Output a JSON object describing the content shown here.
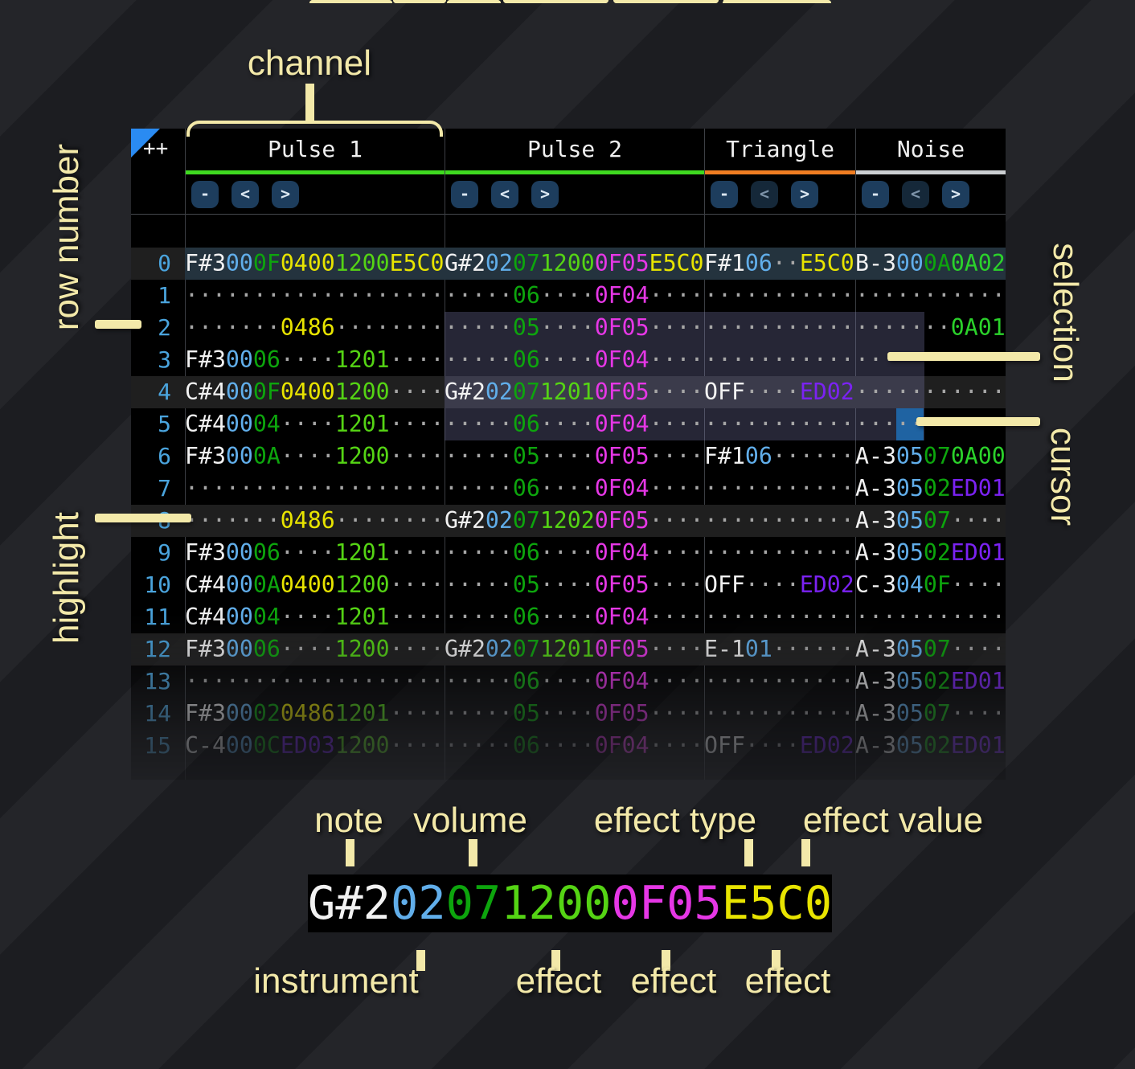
{
  "corner": "++",
  "channels": [
    {
      "name": "Pulse 1",
      "underline": "#3fd920",
      "buttons": [
        {
          "label": "-",
          "dim": false
        },
        {
          "label": "<",
          "dim": false
        },
        {
          "label": ">",
          "dim": false
        }
      ]
    },
    {
      "name": "Pulse 2",
      "underline": "#3fd920",
      "buttons": [
        {
          "label": "-",
          "dim": false
        },
        {
          "label": "<",
          "dim": false
        },
        {
          "label": ">",
          "dim": false
        }
      ]
    },
    {
      "name": "Triangle",
      "underline": "#ef7d22",
      "buttons": [
        {
          "label": "-",
          "dim": false
        },
        {
          "label": "<",
          "dim": true
        },
        {
          "label": ">",
          "dim": false
        }
      ]
    },
    {
      "name": "Noise",
      "underline": "#cbced1",
      "buttons": [
        {
          "label": "-",
          "dim": false
        },
        {
          "label": "<",
          "dim": true
        },
        {
          "label": ">",
          "dim": false
        }
      ]
    }
  ],
  "rows": [
    {
      "n": "0",
      "beat": true,
      "play": true,
      "cells": [
        [
          [
            "F#3",
            "n"
          ],
          [
            "00",
            "i"
          ],
          [
            "0F",
            "v"
          ],
          [
            "0400",
            "y"
          ],
          [
            "1200",
            "l"
          ],
          [
            "E5C0",
            "y"
          ]
        ],
        [
          [
            "G#2",
            "n"
          ],
          [
            "02",
            "i"
          ],
          [
            "07",
            "v"
          ],
          [
            "1200",
            "l"
          ],
          [
            "0F05",
            "m"
          ],
          [
            "E5C0",
            "y"
          ]
        ],
        [
          [
            "F#1",
            "n"
          ],
          [
            "06",
            "i"
          ],
          [
            "··",
            "d"
          ],
          [
            "E5C0",
            "y"
          ]
        ],
        [
          [
            "B-3",
            "n"
          ],
          [
            "00",
            "i"
          ],
          [
            "0A",
            "v"
          ],
          [
            "0A02",
            "g"
          ]
        ]
      ]
    },
    {
      "n": "1",
      "beat": false,
      "play": false,
      "cells": [
        [
          [
            "···················",
            "d"
          ]
        ],
        [
          [
            "·····",
            "d"
          ],
          [
            "06",
            "v"
          ],
          [
            "····",
            "d"
          ],
          [
            "0F04",
            "m"
          ],
          [
            "····",
            "d"
          ]
        ],
        [
          [
            "···········",
            "d"
          ]
        ],
        [
          [
            "···········",
            "d"
          ]
        ]
      ]
    },
    {
      "n": "2",
      "beat": false,
      "play": false,
      "cells": [
        [
          [
            "·······",
            "d"
          ],
          [
            "0486",
            "y"
          ],
          [
            "········",
            "d"
          ]
        ],
        [
          [
            "·····",
            "d"
          ],
          [
            "05",
            "v"
          ],
          [
            "····",
            "d"
          ],
          [
            "0F05",
            "m"
          ],
          [
            "····",
            "d"
          ]
        ],
        [
          [
            "···········",
            "d"
          ]
        ],
        [
          [
            "·······",
            "d"
          ],
          [
            "0A01",
            "g"
          ]
        ]
      ]
    },
    {
      "n": "3",
      "beat": false,
      "play": false,
      "cells": [
        [
          [
            "F#3",
            "n"
          ],
          [
            "00",
            "i"
          ],
          [
            "06",
            "v"
          ],
          [
            "····",
            "d"
          ],
          [
            "1201",
            "l"
          ],
          [
            "····",
            "d"
          ]
        ],
        [
          [
            "·····",
            "d"
          ],
          [
            "06",
            "v"
          ],
          [
            "····",
            "d"
          ],
          [
            "0F04",
            "m"
          ],
          [
            "····",
            "d"
          ]
        ],
        [
          [
            "···········",
            "d"
          ]
        ],
        [
          [
            "···········",
            "d"
          ]
        ]
      ]
    },
    {
      "n": "4",
      "beat": true,
      "play": false,
      "cells": [
        [
          [
            "C#4",
            "n"
          ],
          [
            "00",
            "i"
          ],
          [
            "0F",
            "v"
          ],
          [
            "0400",
            "y"
          ],
          [
            "1200",
            "l"
          ],
          [
            "····",
            "d"
          ]
        ],
        [
          [
            "G#2",
            "n"
          ],
          [
            "02",
            "i"
          ],
          [
            "07",
            "v"
          ],
          [
            "1201",
            "l"
          ],
          [
            "0F05",
            "m"
          ],
          [
            "····",
            "d"
          ]
        ],
        [
          [
            "OFF",
            "n"
          ],
          [
            "····",
            "d"
          ],
          [
            "ED02",
            "p"
          ]
        ],
        [
          [
            "···········",
            "d"
          ]
        ]
      ]
    },
    {
      "n": "5",
      "beat": false,
      "play": false,
      "cells": [
        [
          [
            "C#4",
            "n"
          ],
          [
            "00",
            "i"
          ],
          [
            "04",
            "v"
          ],
          [
            "····",
            "d"
          ],
          [
            "1201",
            "l"
          ],
          [
            "····",
            "d"
          ]
        ],
        [
          [
            "·····",
            "d"
          ],
          [
            "06",
            "v"
          ],
          [
            "····",
            "d"
          ],
          [
            "0F04",
            "m"
          ],
          [
            "····",
            "d"
          ]
        ],
        [
          [
            "···········",
            "d"
          ]
        ],
        [
          [
            "···········",
            "d"
          ]
        ]
      ]
    },
    {
      "n": "6",
      "beat": false,
      "play": false,
      "cells": [
        [
          [
            "F#3",
            "n"
          ],
          [
            "00",
            "i"
          ],
          [
            "0A",
            "v"
          ],
          [
            "····",
            "d"
          ],
          [
            "1200",
            "l"
          ],
          [
            "····",
            "d"
          ]
        ],
        [
          [
            "·····",
            "d"
          ],
          [
            "05",
            "v"
          ],
          [
            "····",
            "d"
          ],
          [
            "0F05",
            "m"
          ],
          [
            "····",
            "d"
          ]
        ],
        [
          [
            "F#1",
            "n"
          ],
          [
            "06",
            "i"
          ],
          [
            "······",
            "d"
          ]
        ],
        [
          [
            "A-3",
            "n"
          ],
          [
            "05",
            "i"
          ],
          [
            "07",
            "v"
          ],
          [
            "0A00",
            "g"
          ]
        ]
      ]
    },
    {
      "n": "7",
      "beat": false,
      "play": false,
      "cells": [
        [
          [
            "···················",
            "d"
          ]
        ],
        [
          [
            "·····",
            "d"
          ],
          [
            "06",
            "v"
          ],
          [
            "····",
            "d"
          ],
          [
            "0F04",
            "m"
          ],
          [
            "····",
            "d"
          ]
        ],
        [
          [
            "···········",
            "d"
          ]
        ],
        [
          [
            "A-3",
            "n"
          ],
          [
            "05",
            "i"
          ],
          [
            "02",
            "v"
          ],
          [
            "ED01",
            "p"
          ]
        ]
      ]
    },
    {
      "n": "8",
      "beat": true,
      "play": false,
      "cells": [
        [
          [
            "·······",
            "d"
          ],
          [
            "0486",
            "y"
          ],
          [
            "········",
            "d"
          ]
        ],
        [
          [
            "G#2",
            "n"
          ],
          [
            "02",
            "i"
          ],
          [
            "07",
            "v"
          ],
          [
            "1202",
            "l"
          ],
          [
            "0F05",
            "m"
          ],
          [
            "····",
            "d"
          ]
        ],
        [
          [
            "···········",
            "d"
          ]
        ],
        [
          [
            "A-3",
            "n"
          ],
          [
            "05",
            "i"
          ],
          [
            "07",
            "v"
          ],
          [
            "····",
            "d"
          ]
        ]
      ]
    },
    {
      "n": "9",
      "beat": false,
      "play": false,
      "cells": [
        [
          [
            "F#3",
            "n"
          ],
          [
            "00",
            "i"
          ],
          [
            "06",
            "v"
          ],
          [
            "····",
            "d"
          ],
          [
            "1201",
            "l"
          ],
          [
            "····",
            "d"
          ]
        ],
        [
          [
            "·····",
            "d"
          ],
          [
            "06",
            "v"
          ],
          [
            "····",
            "d"
          ],
          [
            "0F04",
            "m"
          ],
          [
            "····",
            "d"
          ]
        ],
        [
          [
            "···········",
            "d"
          ]
        ],
        [
          [
            "A-3",
            "n"
          ],
          [
            "05",
            "i"
          ],
          [
            "02",
            "v"
          ],
          [
            "ED01",
            "p"
          ]
        ]
      ]
    },
    {
      "n": "10",
      "beat": false,
      "play": false,
      "cells": [
        [
          [
            "C#4",
            "n"
          ],
          [
            "00",
            "i"
          ],
          [
            "0A",
            "v"
          ],
          [
            "0400",
            "y"
          ],
          [
            "1200",
            "l"
          ],
          [
            "····",
            "d"
          ]
        ],
        [
          [
            "·····",
            "d"
          ],
          [
            "05",
            "v"
          ],
          [
            "····",
            "d"
          ],
          [
            "0F05",
            "m"
          ],
          [
            "····",
            "d"
          ]
        ],
        [
          [
            "OFF",
            "n"
          ],
          [
            "····",
            "d"
          ],
          [
            "ED02",
            "p"
          ]
        ],
        [
          [
            "C-3",
            "n"
          ],
          [
            "04",
            "i"
          ],
          [
            "0F",
            "v"
          ],
          [
            "····",
            "d"
          ]
        ]
      ]
    },
    {
      "n": "11",
      "beat": false,
      "play": false,
      "cells": [
        [
          [
            "C#4",
            "n"
          ],
          [
            "00",
            "i"
          ],
          [
            "04",
            "v"
          ],
          [
            "····",
            "d"
          ],
          [
            "1201",
            "l"
          ],
          [
            "····",
            "d"
          ]
        ],
        [
          [
            "·····",
            "d"
          ],
          [
            "06",
            "v"
          ],
          [
            "····",
            "d"
          ],
          [
            "0F04",
            "m"
          ],
          [
            "····",
            "d"
          ]
        ],
        [
          [
            "···········",
            "d"
          ]
        ],
        [
          [
            "···········",
            "d"
          ]
        ]
      ]
    },
    {
      "n": "12",
      "beat": true,
      "play": false,
      "cells": [
        [
          [
            "F#3",
            "n"
          ],
          [
            "00",
            "i"
          ],
          [
            "06",
            "v"
          ],
          [
            "····",
            "d"
          ],
          [
            "1200",
            "l"
          ],
          [
            "····",
            "d"
          ]
        ],
        [
          [
            "G#2",
            "n"
          ],
          [
            "02",
            "i"
          ],
          [
            "07",
            "v"
          ],
          [
            "1201",
            "l"
          ],
          [
            "0F05",
            "m"
          ],
          [
            "····",
            "d"
          ]
        ],
        [
          [
            "E-1",
            "n"
          ],
          [
            "01",
            "i"
          ],
          [
            "······",
            "d"
          ]
        ],
        [
          [
            "A-3",
            "n"
          ],
          [
            "05",
            "i"
          ],
          [
            "07",
            "v"
          ],
          [
            "····",
            "d"
          ]
        ]
      ]
    },
    {
      "n": "13",
      "beat": false,
      "play": false,
      "cells": [
        [
          [
            "···················",
            "d"
          ]
        ],
        [
          [
            "·····",
            "d"
          ],
          [
            "06",
            "v"
          ],
          [
            "····",
            "d"
          ],
          [
            "0F04",
            "m"
          ],
          [
            "····",
            "d"
          ]
        ],
        [
          [
            "···········",
            "d"
          ]
        ],
        [
          [
            "A-3",
            "n"
          ],
          [
            "05",
            "i"
          ],
          [
            "02",
            "v"
          ],
          [
            "ED01",
            "p"
          ]
        ]
      ]
    },
    {
      "n": "14",
      "beat": false,
      "play": false,
      "cells": [
        [
          [
            "F#3",
            "n"
          ],
          [
            "00",
            "i"
          ],
          [
            "02",
            "v"
          ],
          [
            "0486",
            "y"
          ],
          [
            "1201",
            "l"
          ],
          [
            "····",
            "d"
          ]
        ],
        [
          [
            "·····",
            "d"
          ],
          [
            "05",
            "v"
          ],
          [
            "····",
            "d"
          ],
          [
            "0F05",
            "m"
          ],
          [
            "····",
            "d"
          ]
        ],
        [
          [
            "···········",
            "d"
          ]
        ],
        [
          [
            "A-3",
            "n"
          ],
          [
            "05",
            "i"
          ],
          [
            "07",
            "v"
          ],
          [
            "····",
            "d"
          ]
        ]
      ]
    },
    {
      "n": "15",
      "beat": false,
      "play": false,
      "cells": [
        [
          [
            "C-4",
            "n"
          ],
          [
            "00",
            "i"
          ],
          [
            "0C",
            "v"
          ],
          [
            "ED03",
            "p"
          ],
          [
            "1200",
            "l"
          ],
          [
            "····",
            "d"
          ]
        ],
        [
          [
            "·····",
            "d"
          ],
          [
            "06",
            "v"
          ],
          [
            "····",
            "d"
          ],
          [
            "0F04",
            "m"
          ],
          [
            "····",
            "d"
          ]
        ],
        [
          [
            "OFF",
            "n"
          ],
          [
            "····",
            "d"
          ],
          [
            "ED02",
            "p"
          ]
        ],
        [
          [
            "A-3",
            "n"
          ],
          [
            "05",
            "i"
          ],
          [
            "02",
            "v"
          ],
          [
            "ED01",
            "p"
          ]
        ]
      ]
    }
  ],
  "annotations": {
    "channel": "channel",
    "row_number": "row number",
    "highlight": "highlight",
    "selection": "selection",
    "cursor": "cursor"
  },
  "legend": {
    "cell": [
      [
        "G#2",
        "n"
      ],
      [
        "02",
        "i"
      ],
      [
        "07",
        "v"
      ],
      [
        "1200",
        "l"
      ],
      [
        "0F05",
        "m"
      ],
      [
        "E5C0",
        "y"
      ]
    ],
    "top_labels": [
      {
        "text": "note"
      },
      {
        "text": "volume"
      },
      {
        "text": "effect type"
      },
      {
        "text": "effect value"
      }
    ],
    "bottom_labels": [
      {
        "text": "instrument"
      },
      {
        "text": "effect"
      },
      {
        "text": "effect"
      },
      {
        "text": "effect"
      }
    ]
  },
  "colors": {
    "pulse_underline": "#3fd920",
    "triangle_underline": "#ef7d22",
    "noise_underline": "#cbced1",
    "note": "#f2f2f2",
    "instrument": "#61aeea",
    "volume": "#0da50d",
    "effect_lime": "#55d414",
    "effect_yellow": "#e8e400",
    "effect_magenta": "#e637e6",
    "effect_purple": "#7b22f2",
    "effect_green": "#2bd22b",
    "row_number": "#4aa4dd",
    "playhead_row": "#24333e",
    "beat_row": "#1f1f1f",
    "selection": "#7d7db4",
    "cursor": "#1f63a2",
    "annotation": "#f3e9a9"
  }
}
